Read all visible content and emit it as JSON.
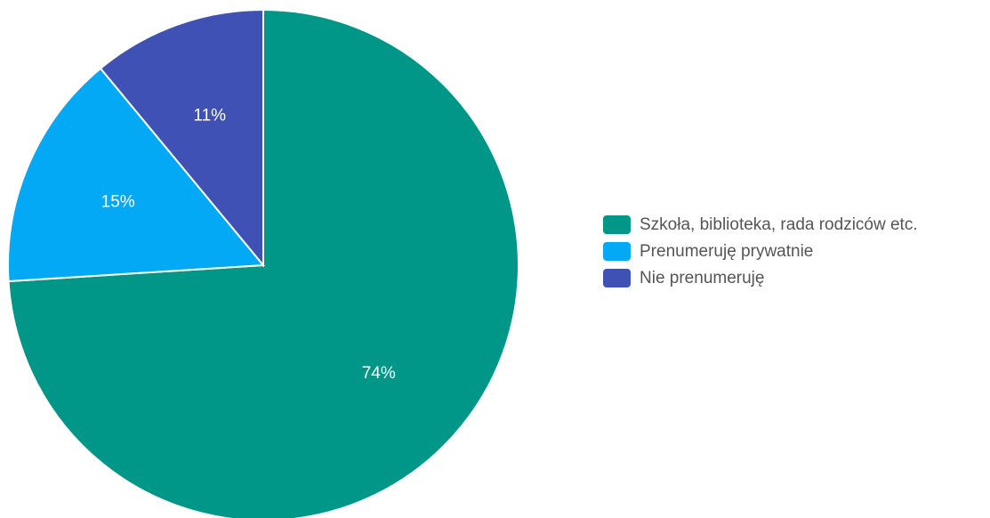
{
  "chart_data": {
    "type": "pie",
    "title": "",
    "slices": [
      {
        "label": "Szkoła, biblioteka, rada rodziców etc.",
        "value": 74,
        "display": "74%",
        "color": "#009688"
      },
      {
        "label": "Prenumeruję prywatnie",
        "value": 15,
        "display": "15%",
        "color": "#03a9f4"
      },
      {
        "label": "Nie prenumeruję",
        "value": 11,
        "display": "11%",
        "color": "#3f51b5"
      }
    ],
    "legend_position": "right",
    "start_angle": "12 o'clock",
    "direction": "clockwise"
  }
}
